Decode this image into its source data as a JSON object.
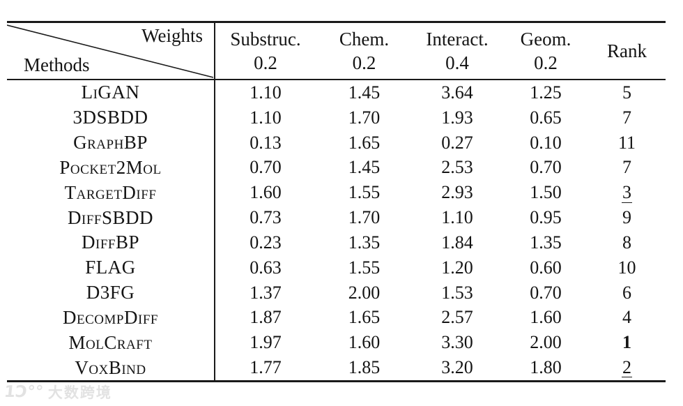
{
  "table": {
    "type": "table",
    "corner": {
      "top_right_label": "Weights",
      "bottom_left_label": "Methods"
    },
    "columns": [
      {
        "label": "Substruc.",
        "weight": "0.2"
      },
      {
        "label": "Chem.",
        "weight": "0.2"
      },
      {
        "label": "Interact.",
        "weight": "0.4"
      },
      {
        "label": "Geom.",
        "weight": "0.2"
      }
    ],
    "rank_header": "Rank",
    "rows": [
      {
        "method": "LiGAN",
        "values": [
          "1.10",
          "1.45",
          "3.64",
          "1.25"
        ],
        "rank": "5",
        "rank_style": "normal"
      },
      {
        "method": "3DSBDD",
        "values": [
          "1.10",
          "1.70",
          "1.93",
          "0.65"
        ],
        "rank": "7",
        "rank_style": "normal"
      },
      {
        "method": "GraphBP",
        "values": [
          "0.13",
          "1.65",
          "0.27",
          "0.10"
        ],
        "rank": "11",
        "rank_style": "normal"
      },
      {
        "method": "Pocket2Mol",
        "values": [
          "0.70",
          "1.45",
          "2.53",
          "0.70"
        ],
        "rank": "7",
        "rank_style": "normal"
      },
      {
        "method": "TargetDiff",
        "values": [
          "1.60",
          "1.55",
          "2.93",
          "1.50"
        ],
        "rank": "3",
        "rank_style": "underline"
      },
      {
        "method": "DiffSBDD",
        "values": [
          "0.73",
          "1.70",
          "1.10",
          "0.95"
        ],
        "rank": "9",
        "rank_style": "normal"
      },
      {
        "method": "DiffBP",
        "values": [
          "0.23",
          "1.35",
          "1.84",
          "1.35"
        ],
        "rank": "8",
        "rank_style": "normal"
      },
      {
        "method": "FLAG",
        "values": [
          "0.63",
          "1.55",
          "1.20",
          "0.60"
        ],
        "rank": "10",
        "rank_style": "normal"
      },
      {
        "method": "D3FG",
        "values": [
          "1.37",
          "2.00",
          "1.53",
          "0.70"
        ],
        "rank": "6",
        "rank_style": "normal"
      },
      {
        "method": "DecompDiff",
        "values": [
          "1.87",
          "1.65",
          "2.57",
          "1.60"
        ],
        "rank": "4",
        "rank_style": "normal"
      },
      {
        "method": "MolCraft",
        "values": [
          "1.97",
          "1.60",
          "3.30",
          "2.00"
        ],
        "rank": "1",
        "rank_style": "bold"
      },
      {
        "method": "VoxBind",
        "values": [
          "1.77",
          "1.85",
          "3.20",
          "1.80"
        ],
        "rank": "2",
        "rank_style": "underline"
      }
    ]
  },
  "watermark": {
    "logo_mark": "1Ɔ°°",
    "text": "大数跨境"
  },
  "colors": {
    "background": "#ffffff",
    "text": "#141414",
    "rule": "#1a1a1a",
    "watermark": "#e2e2e2"
  }
}
